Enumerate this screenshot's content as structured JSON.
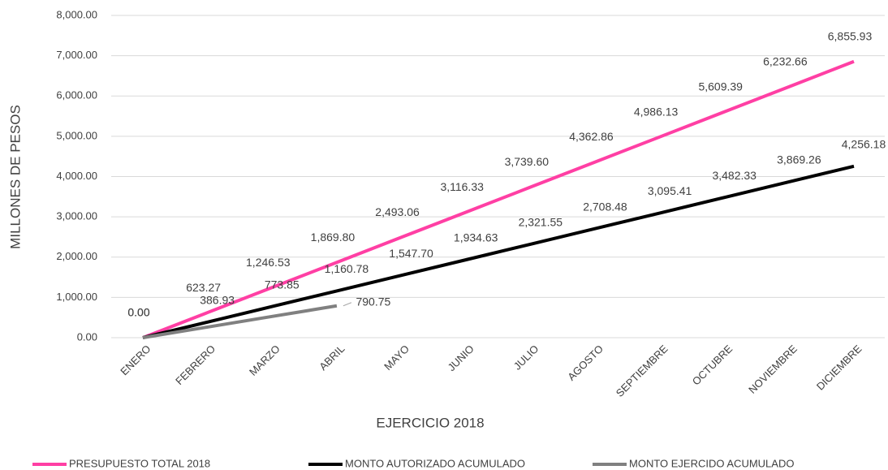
{
  "chart_data": {
    "type": "line",
    "x_label": "EJERCICIO 2018",
    "y_label": "MILLONES DE PESOS",
    "categories": [
      "ENERO",
      "FEBRERO",
      "MARZO",
      "ABRIL",
      "MAYO",
      "JUNIO",
      "JULIO",
      "AGOSTO",
      "SEPTIEMBRE",
      "OCTUBRE",
      "NOVIEMBRE",
      "DICIEMBRE"
    ],
    "series": [
      {
        "name": "PRESUPUESTO TOTAL 2018",
        "color": "#ff3fa4",
        "values": [
          0,
          623.27,
          1246.53,
          1869.8,
          2493.06,
          3116.33,
          3739.6,
          4362.86,
          4986.13,
          5609.39,
          6232.66,
          6855.93
        ],
        "value_labels": [
          "0.00",
          "623.27",
          "1,246.53",
          "1,869.80",
          "2,493.06",
          "3,116.33",
          "3,739.60",
          "4,362.86",
          "4,986.13",
          "5,609.39",
          "6,232.66",
          "6,855.93"
        ]
      },
      {
        "name": "MONTO AUTORIZADO ACUMULADO",
        "color": "#000000",
        "values": [
          0,
          386.93,
          773.85,
          1160.78,
          1547.7,
          1934.63,
          2321.55,
          2708.48,
          3095.41,
          3482.33,
          3869.26,
          4256.18
        ],
        "value_labels": [
          "0.00",
          "386.93",
          "773.85",
          "1,160.78",
          "1,547.70",
          "1,934.63",
          "2,321.55",
          "2,708.48",
          "3,095.41",
          "3,482.33",
          "3,869.26",
          "4,256.18"
        ]
      },
      {
        "name": "MONTO EJERCIDO ACUMULADO",
        "color": "#808080",
        "values": [
          0,
          263.6,
          527.2,
          790.75,
          null,
          null,
          null,
          null,
          null,
          null,
          null,
          null
        ],
        "value_labels": [
          null,
          null,
          null,
          "790.75",
          null,
          null,
          null,
          null,
          null,
          null,
          null,
          null
        ]
      }
    ],
    "ylim": [
      0,
      8000
    ],
    "yticks": [
      {
        "value": 0,
        "label": "0.00"
      },
      {
        "value": 1000,
        "label": "1,000.00"
      },
      {
        "value": 2000,
        "label": "2,000.00"
      },
      {
        "value": 3000,
        "label": "3,000.00"
      },
      {
        "value": 4000,
        "label": "4,000.00"
      },
      {
        "value": 5000,
        "label": "5,000.00"
      },
      {
        "value": 6000,
        "label": "6,000.00"
      },
      {
        "value": 7000,
        "label": "7,000.00"
      },
      {
        "value": 8000,
        "label": "8,000.00"
      }
    ],
    "grid": true
  }
}
